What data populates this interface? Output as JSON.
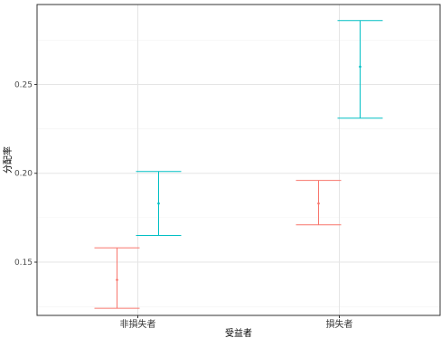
{
  "chart_data": {
    "type": "errorbar",
    "xlabel": "受益者",
    "ylabel": "分配率",
    "categories": [
      "非損失者",
      "損失者"
    ],
    "ylim": [
      0.12,
      0.295
    ],
    "yticks": [
      0.15,
      0.2,
      0.25
    ],
    "ytick_labels": [
      "0.15",
      "0.20",
      "0.25"
    ],
    "grid": true,
    "legend": "none",
    "series": [
      {
        "color": "#F8766D",
        "points": [
          {
            "category": "非損失者",
            "mean": 0.14,
            "lower": 0.124,
            "upper": 0.158
          },
          {
            "category": "損失者",
            "mean": 0.183,
            "lower": 0.171,
            "upper": 0.196
          }
        ]
      },
      {
        "color": "#00BFC4",
        "points": [
          {
            "category": "非損失者",
            "mean": 0.183,
            "lower": 0.165,
            "upper": 0.201
          },
          {
            "category": "損失者",
            "mean": 0.26,
            "lower": 0.231,
            "upper": 0.286
          }
        ]
      }
    ]
  }
}
